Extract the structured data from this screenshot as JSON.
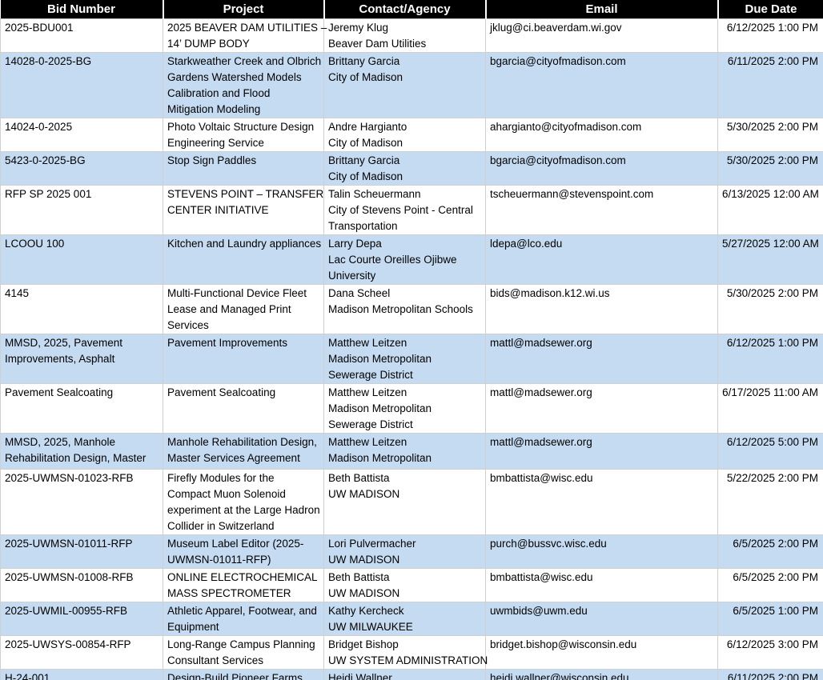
{
  "colors": {
    "header_bg": "#000000",
    "header_text": "#FFFFFF",
    "band_white": "#FFFFFF",
    "band_blue": "#C5DBF1",
    "grid_line": "#D0D0D0"
  },
  "table": {
    "columns": [
      {
        "label": "Bid Number"
      },
      {
        "label": "Project"
      },
      {
        "label": "Contact/Agency"
      },
      {
        "label": "Email"
      },
      {
        "label": "Due Date"
      }
    ],
    "rows": [
      {
        "bid": "2025-BDU001",
        "project": "2025 BEAVER DAM UTILITIES –\n14’ DUMP BODY",
        "contact": "Jeremy Klug\nBeaver Dam Utilities",
        "email": "jklug@ci.beaverdam.wi.gov",
        "due": "6/12/2025 1:00 PM"
      },
      {
        "bid": "14028-0-2025-BG",
        "project": "Starkweather Creek and Olbrich\nGardens Watershed Models\nCalibration and Flood\nMitigation Modeling",
        "contact": "Brittany Garcia\nCity of Madison",
        "email": "bgarcia@cityofmadison.com",
        "due": "6/11/2025 2:00 PM"
      },
      {
        "bid": "14024-0-2025",
        "project": "Photo Voltaic Structure Design\nEngineering Service",
        "contact": "Andre Hargianto\nCity of Madison",
        "email": "ahargianto@cityofmadison.com",
        "due": "5/30/2025 2:00 PM"
      },
      {
        "bid": "5423-0-2025-BG",
        "project": "Stop Sign Paddles",
        "contact": "Brittany Garcia\nCity of Madison",
        "email": "bgarcia@cityofmadison.com",
        "due": "5/30/2025 2:00 PM"
      },
      {
        "bid": "RFP SP 2025 001",
        "project": "STEVENS POINT – TRANSFER\nCENTER INITIATIVE",
        "contact": "Talin Scheuermann\nCity of Stevens Point - Central\nTransportation",
        "email": "tscheuermann@stevenspoint.com",
        "due": "6/13/2025 12:00 AM"
      },
      {
        "bid": "LCOOU 100",
        "project": "Kitchen and Laundry appliances",
        "contact": "Larry Depa\nLac Courte Oreilles Ojibwe\nUniversity",
        "email": "ldepa@lco.edu",
        "due": "5/27/2025 12:00 AM"
      },
      {
        "bid": "4145",
        "project": "Multi-Functional Device Fleet\nLease and Managed Print\nServices",
        "contact": "Dana Scheel\nMadison Metropolitan Schools",
        "email": "bids@madison.k12.wi.us",
        "due": "5/30/2025 2:00 PM"
      },
      {
        "bid": "MMSD, 2025, Pavement\nImprovements, Asphalt",
        "project": "Pavement Improvements",
        "contact": "Matthew Leitzen\nMadison Metropolitan\nSewerage District",
        "email": "mattl@madsewer.org",
        "due": "6/12/2025 1:00 PM"
      },
      {
        "bid": "Pavement Sealcoating",
        "project": "Pavement Sealcoating",
        "contact": "Matthew Leitzen\nMadison Metropolitan\nSewerage District",
        "email": "mattl@madsewer.org",
        "due": "6/17/2025 11:00 AM"
      },
      {
        "bid": "MMSD, 2025, Manhole\nRehabilitation Design, Master",
        "project": "Manhole Rehabilitation Design,\nMaster Services Agreement",
        "contact": "Matthew Leitzen\nMadison Metropolitan",
        "email": "mattl@madsewer.org",
        "due": "6/12/2025 5:00 PM"
      },
      {
        "bid": "2025-UWMSN-01023-RFB",
        "project": "Firefly Modules for the\nCompact Muon Solenoid\nexperiment at the Large Hadron\nCollider in Switzerland",
        "contact": "Beth Battista\nUW MADISON",
        "email": "bmbattista@wisc.edu",
        "due": "5/22/2025 2:00 PM"
      },
      {
        "bid": "2025-UWMSN-01011-RFP",
        "project": "Museum Label Editor (2025-\nUWMSN-01011-RFP)",
        "contact": "Lori Pulvermacher\nUW MADISON",
        "email": "purch@bussvc.wisc.edu",
        "due": "6/5/2025 2:00 PM"
      },
      {
        "bid": "2025-UWMSN-01008-RFB",
        "project": "ONLINE ELECTROCHEMICAL\nMASS SPECTROMETER",
        "contact": "Beth Battista\nUW MADISON",
        "email": "bmbattista@wisc.edu",
        "due": "6/5/2025 2:00 PM"
      },
      {
        "bid": "2025-UWMIL-00955-RFB",
        "project": "Athletic Apparel, Footwear, and\nEquipment",
        "contact": "Kathy Kercheck\nUW MILWAUKEE",
        "email": "uwmbids@uwm.edu",
        "due": "6/5/2025 1:00 PM"
      },
      {
        "bid": "2025-UWSYS-00854-RFP",
        "project": "Long-Range Campus Planning\nConsultant Services",
        "contact": "Bridget Bishop\nUW SYSTEM ADMINISTRATION",
        "email": "bridget.bishop@wisconsin.edu",
        "due": "6/12/2025 3:00 PM"
      },
      {
        "bid": "H-24-001",
        "project": "Design-Build Pioneer Farms\nBeef Buildings Replacement",
        "contact": "Heidi Wallner\nUW SYSTEM ADMINISTRATION",
        "email": "heidi.wallner@wisconsin.edu",
        "due": "6/11/2025 2:00 PM"
      }
    ]
  }
}
